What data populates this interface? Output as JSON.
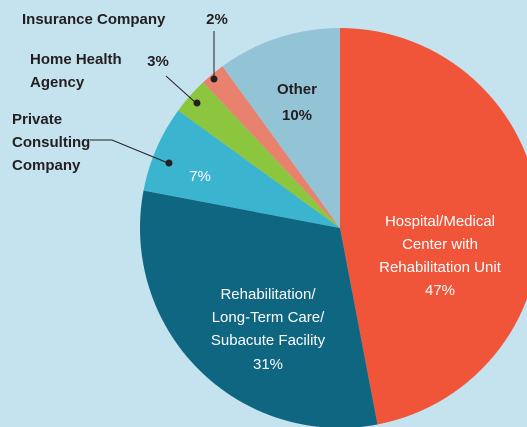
{
  "chart_data": {
    "type": "pie",
    "categories": [
      "Hospital/Medical\nCenter with\nRehabilitation Unit",
      "Rehabilitation/\nLong-Term Care/\nSubacute Facility",
      "Private\nConsulting\nCompany",
      "Home Health\nAgency",
      "Insurance Company",
      "Other"
    ],
    "values": [
      47,
      31,
      7,
      3,
      2,
      10
    ],
    "value_labels": [
      "47%",
      "31%",
      "7%",
      "3%",
      "2%",
      "10%"
    ],
    "colors": [
      "#f05539",
      "#0e6681",
      "#3bb4cf",
      "#8cc63f",
      "#e8826e",
      "#93c4d6"
    ],
    "start_angle": 90,
    "direction": "clockwise"
  }
}
